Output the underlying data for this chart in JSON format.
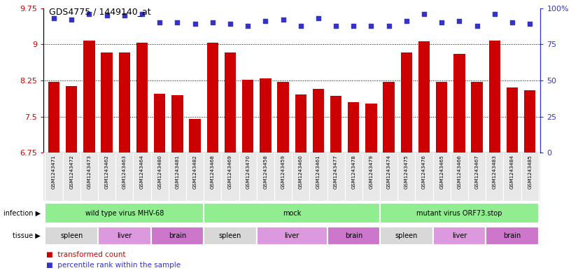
{
  "title": "GDS4775 / 1449140_at",
  "samples": [
    "GSM1243471",
    "GSM1243472",
    "GSM1243473",
    "GSM1243462",
    "GSM1243463",
    "GSM1243464",
    "GSM1243480",
    "GSM1243481",
    "GSM1243482",
    "GSM1243468",
    "GSM1243469",
    "GSM1243470",
    "GSM1243458",
    "GSM1243459",
    "GSM1243460",
    "GSM1243461",
    "GSM1243477",
    "GSM1243478",
    "GSM1243479",
    "GSM1243474",
    "GSM1243475",
    "GSM1243476",
    "GSM1243465",
    "GSM1243466",
    "GSM1243467",
    "GSM1243483",
    "GSM1243484",
    "GSM1243485"
  ],
  "bar_values": [
    8.22,
    8.14,
    9.08,
    8.83,
    8.83,
    9.03,
    7.98,
    7.95,
    7.45,
    9.03,
    8.83,
    8.27,
    8.3,
    8.22,
    7.96,
    8.08,
    7.93,
    7.8,
    7.77,
    8.22,
    8.83,
    9.06,
    8.22,
    8.8,
    8.22,
    9.08,
    8.1,
    8.05
  ],
  "percentile_values": [
    93,
    92,
    96,
    95,
    95,
    96,
    90,
    90,
    89,
    90,
    89,
    88,
    91,
    92,
    88,
    93,
    88,
    88,
    88,
    88,
    91,
    96,
    90,
    91,
    88,
    96,
    90,
    89
  ],
  "bar_color": "#cc0000",
  "dot_color": "#3333cc",
  "ylim_left": [
    6.75,
    9.75
  ],
  "ylim_right": [
    0,
    100
  ],
  "yticks_left": [
    6.75,
    7.5,
    8.25,
    9.0,
    9.75
  ],
  "yticks_right": [
    0,
    25,
    50,
    75,
    100
  ],
  "ytick_labels_left": [
    "6.75",
    "7.5",
    "8.25",
    "9",
    "9.75"
  ],
  "ytick_labels_right": [
    "0",
    "25",
    "50",
    "75",
    "100%"
  ],
  "grid_values": [
    7.5,
    8.25,
    9.0
  ],
  "infection_groups": [
    {
      "label": "wild type virus MHV-68",
      "start": 0,
      "end": 9
    },
    {
      "label": "mock",
      "start": 9,
      "end": 19
    },
    {
      "label": "mutant virus ORF73.stop",
      "start": 19,
      "end": 28
    }
  ],
  "tissue_groups": [
    {
      "label": "spleen",
      "start": 0,
      "end": 3,
      "color": "#d8d8d8"
    },
    {
      "label": "liver",
      "start": 3,
      "end": 6,
      "color": "#dd99dd"
    },
    {
      "label": "brain",
      "start": 6,
      "end": 9,
      "color": "#cc88cc"
    },
    {
      "label": "spleen",
      "start": 9,
      "end": 12,
      "color": "#d8d8d8"
    },
    {
      "label": "liver",
      "start": 12,
      "end": 16,
      "color": "#dd99dd"
    },
    {
      "label": "brain",
      "start": 16,
      "end": 19,
      "color": "#cc88cc"
    },
    {
      "label": "spleen",
      "start": 19,
      "end": 22,
      "color": "#d8d8d8"
    },
    {
      "label": "liver",
      "start": 22,
      "end": 25,
      "color": "#dd99dd"
    },
    {
      "label": "brain",
      "start": 25,
      "end": 28,
      "color": "#cc88cc"
    }
  ],
  "infection_color": "#90ee90",
  "sample_bg_color": "#e8e8e8",
  "legend_bar_label": "transformed count",
  "legend_dot_label": "percentile rank within the sample",
  "infection_label": "infection",
  "tissue_label": "tissue"
}
